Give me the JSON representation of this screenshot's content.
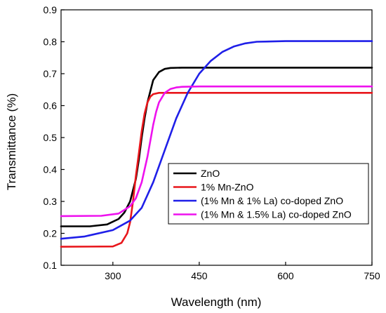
{
  "chart_data": {
    "type": "line",
    "title": "",
    "xlabel": "Wavelength (nm)",
    "ylabel": "Transmittance (%)",
    "xlim": [
      210,
      750
    ],
    "ylim": [
      0.1,
      0.9
    ],
    "xticks": [
      300,
      450,
      600,
      750
    ],
    "yticks": [
      0.1,
      0.2,
      0.3,
      0.4,
      0.5,
      0.6,
      0.7,
      0.8,
      0.9
    ],
    "grid": false,
    "legend_position": "bottom-right",
    "series": [
      {
        "name": "ZnO",
        "color": "#000000",
        "x": [
          210,
          260,
          290,
          310,
          320,
          330,
          340,
          345,
          350,
          355,
          360,
          370,
          380,
          390,
          400,
          420,
          450,
          500,
          600,
          750
        ],
        "y": [
          0.222,
          0.222,
          0.228,
          0.245,
          0.265,
          0.3,
          0.37,
          0.43,
          0.5,
          0.56,
          0.61,
          0.68,
          0.705,
          0.715,
          0.718,
          0.719,
          0.719,
          0.719,
          0.719,
          0.719
        ]
      },
      {
        "name": "1% Mn-ZnO",
        "color": "#e8161b",
        "x": [
          210,
          300,
          315,
          325,
          330,
          335,
          340,
          345,
          350,
          355,
          360,
          365,
          370,
          380,
          390,
          400,
          450,
          600,
          750
        ],
        "y": [
          0.158,
          0.159,
          0.17,
          0.2,
          0.235,
          0.3,
          0.38,
          0.45,
          0.52,
          0.575,
          0.61,
          0.628,
          0.636,
          0.64,
          0.64,
          0.64,
          0.64,
          0.64,
          0.64
        ]
      },
      {
        "name": "(1% Mn & 1% La) co-doped ZnO",
        "color": "#1f1fe8",
        "x": [
          210,
          250,
          300,
          330,
          350,
          370,
          390,
          410,
          430,
          450,
          470,
          490,
          510,
          530,
          550,
          600,
          650,
          750
        ],
        "y": [
          0.183,
          0.19,
          0.21,
          0.24,
          0.28,
          0.36,
          0.46,
          0.56,
          0.64,
          0.7,
          0.74,
          0.768,
          0.785,
          0.795,
          0.8,
          0.802,
          0.802,
          0.802
        ]
      },
      {
        "name": "(1% Mn & 1.5% La) co-doped ZnO",
        "color": "#ee11ee",
        "x": [
          210,
          280,
          310,
          330,
          340,
          350,
          360,
          365,
          370,
          375,
          380,
          390,
          400,
          410,
          420,
          450,
          500,
          750
        ],
        "y": [
          0.254,
          0.255,
          0.262,
          0.285,
          0.31,
          0.36,
          0.44,
          0.49,
          0.54,
          0.58,
          0.61,
          0.64,
          0.652,
          0.657,
          0.659,
          0.66,
          0.66,
          0.66
        ]
      }
    ]
  }
}
